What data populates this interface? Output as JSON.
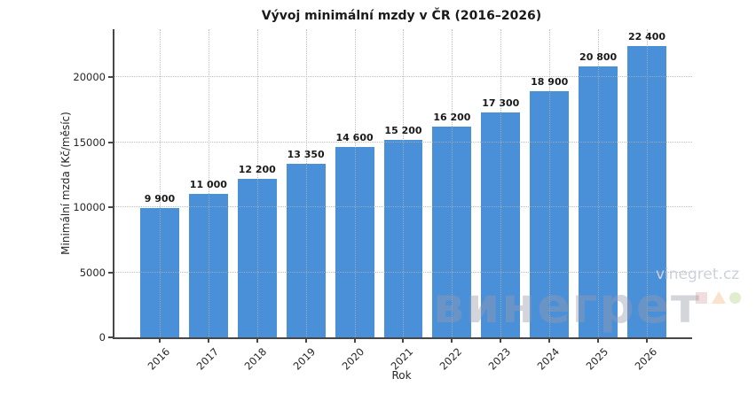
{
  "chart_data": {
    "type": "bar",
    "title": "Vývoj minimální mzdy v ČR (2016–2026)",
    "xlabel": "Rok",
    "ylabel": "Minimální mzda (Kč/měsíc)",
    "categories": [
      "2016",
      "2017",
      "2018",
      "2019",
      "2020",
      "2021",
      "2022",
      "2023",
      "2024",
      "2025",
      "2026"
    ],
    "values": [
      9900,
      11000,
      12200,
      13350,
      14600,
      15200,
      16200,
      17300,
      18900,
      20800,
      22400
    ],
    "bar_labels": [
      "9 900",
      "11 000",
      "12 200",
      "13 350",
      "14 600",
      "15 200",
      "16 200",
      "17 300",
      "18 900",
      "20 800",
      "22 400"
    ],
    "yticks": [
      0,
      5000,
      10000,
      15000,
      20000
    ],
    "ytick_labels": [
      "0",
      "5000",
      "10000",
      "15000",
      "20000"
    ],
    "ylim": [
      0,
      23673
    ],
    "grid": true,
    "legend": "none",
    "bar_color": "#4a90d9"
  },
  "watermark": {
    "brand": "винегрет",
    "site": "vinegret.cz"
  },
  "colors": {
    "bar": "#4a90d9",
    "axis": "#474747",
    "grid": "#cccccc",
    "text": "#1a1a1a",
    "watermark_text": "rgba(150,156,170,0.42)"
  }
}
